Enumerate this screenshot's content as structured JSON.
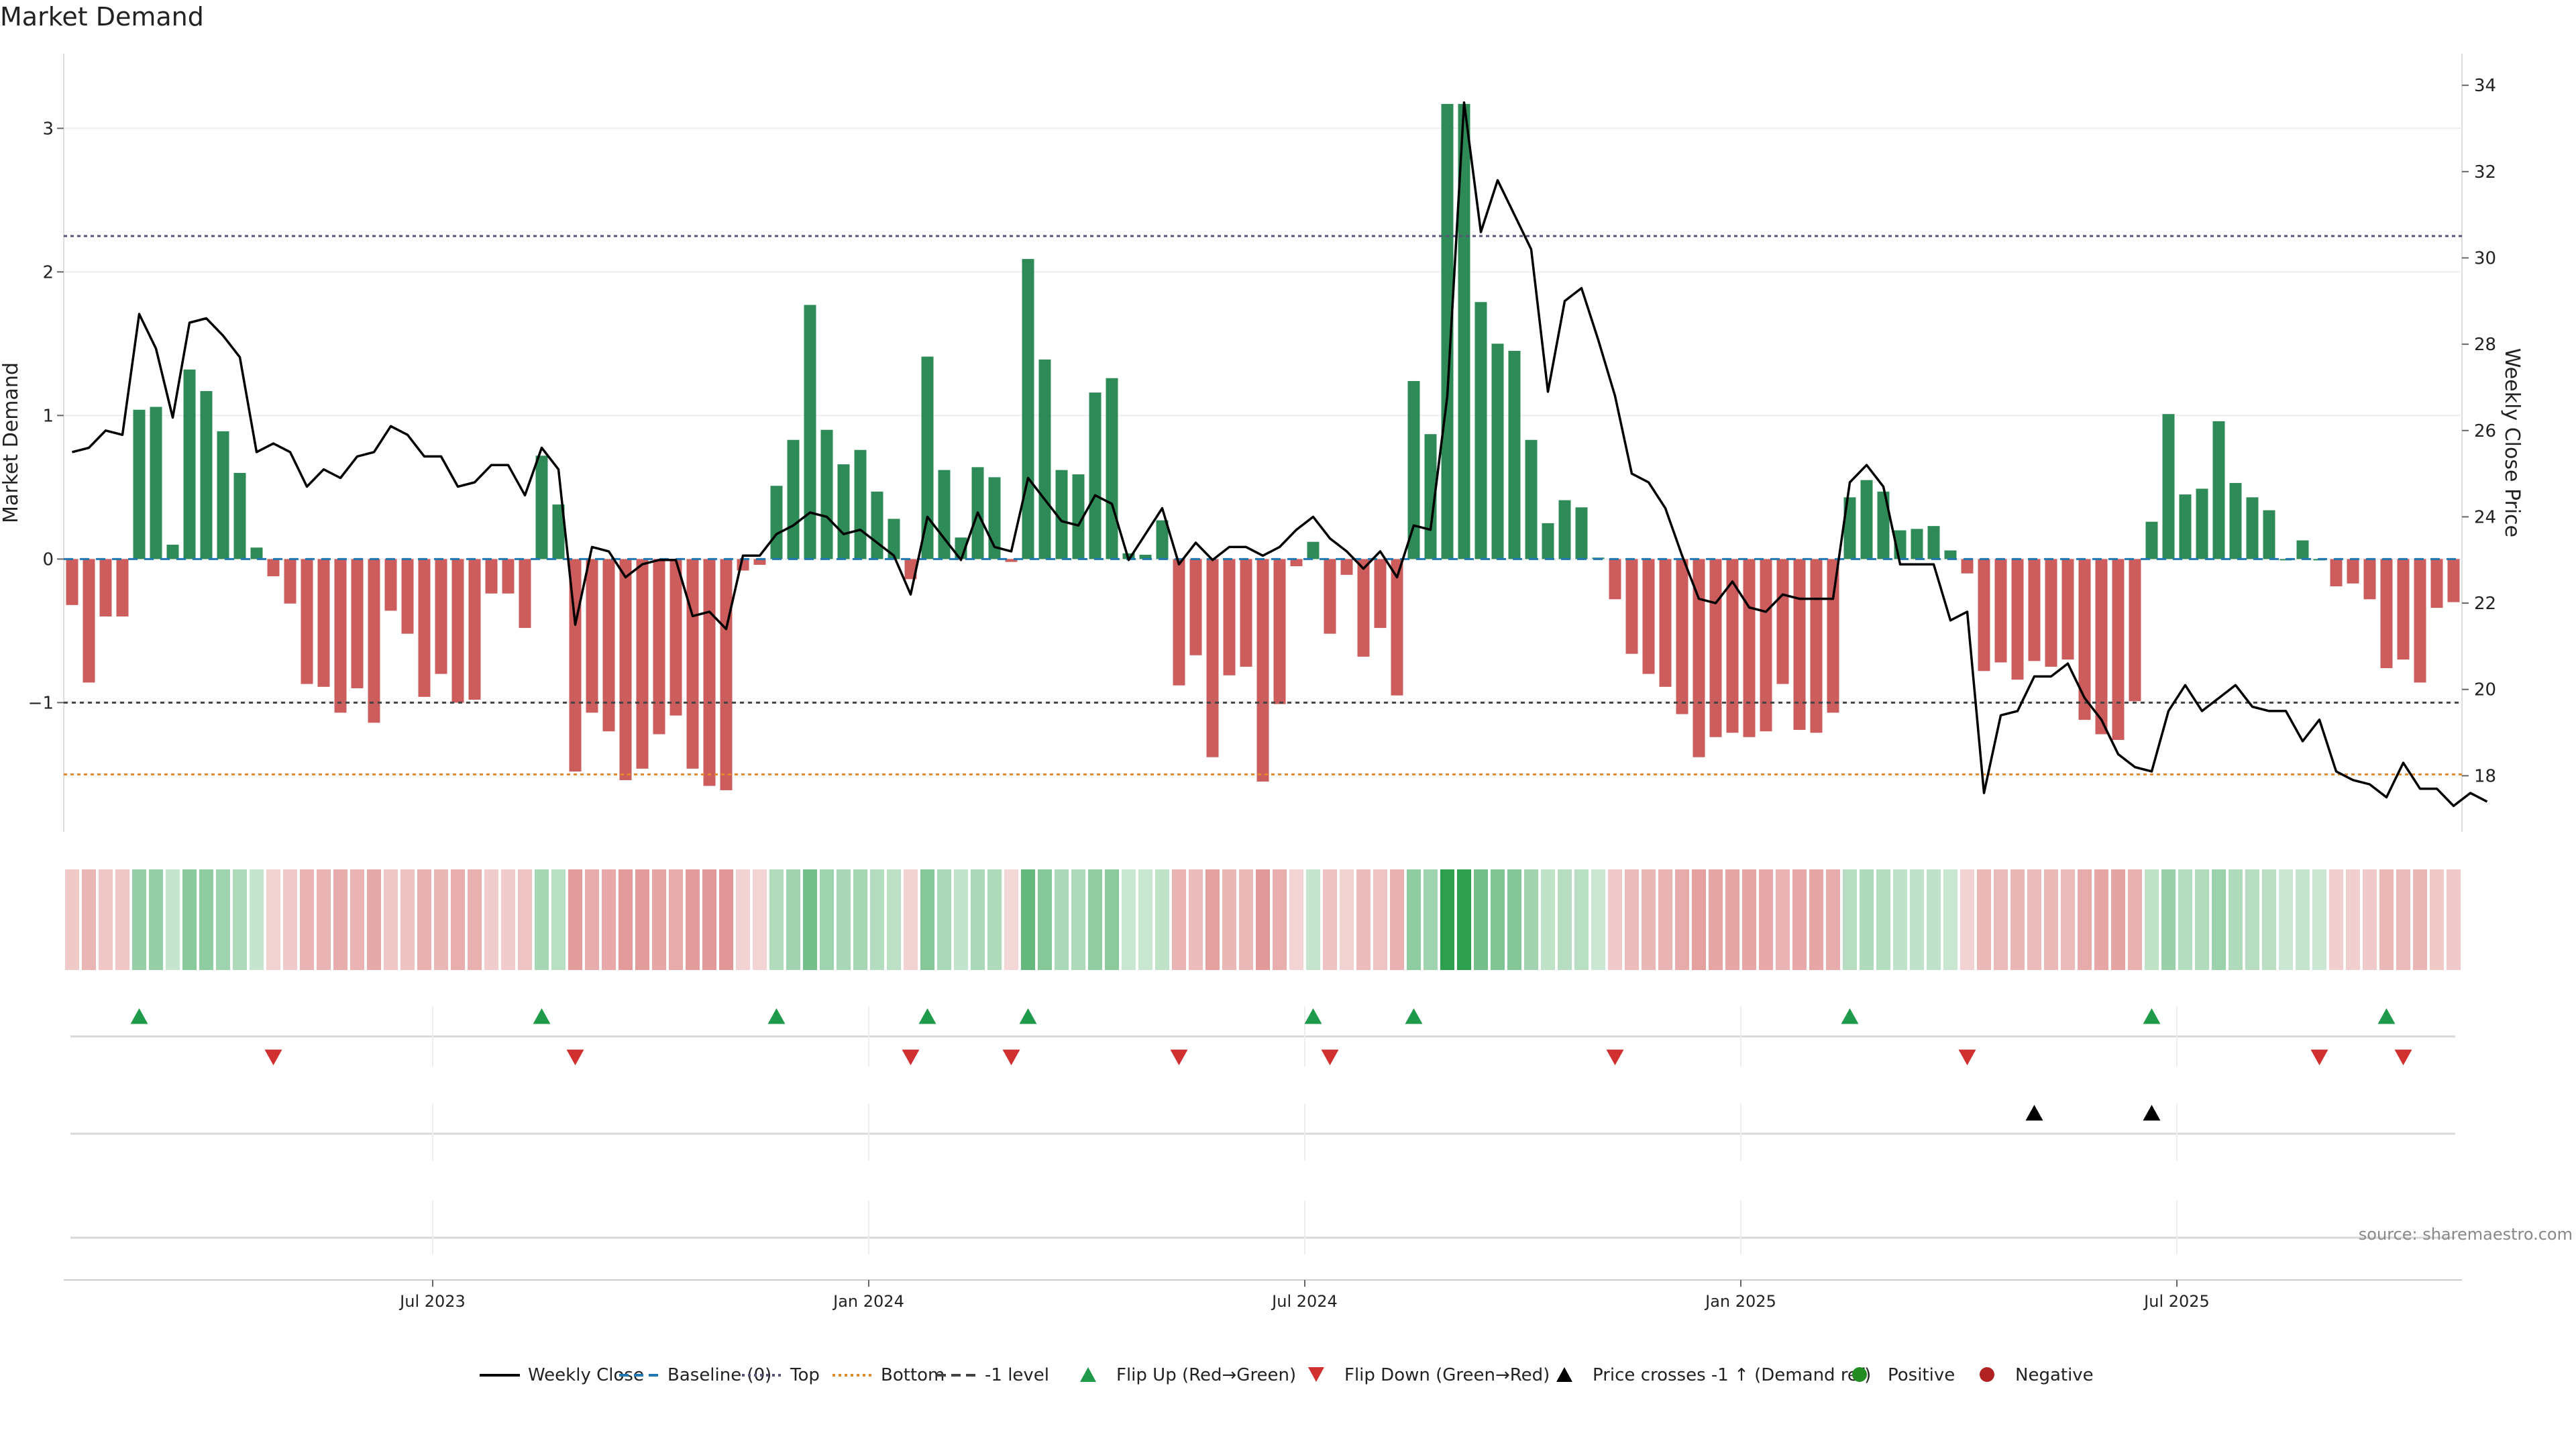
{
  "chart_data": {
    "type": "bar",
    "title": "Market Demand",
    "ylabel": "Market Demand",
    "y2label": "Weekly Close Price",
    "source": "source: sharemaestro.com",
    "ylim": [
      -1.9,
      3.45
    ],
    "y2lim": [
      16.7,
      34.5
    ],
    "yticks": [
      "3",
      "2",
      "1",
      "0",
      "−1"
    ],
    "ytick_values": [
      3,
      2,
      1,
      0,
      -1
    ],
    "y2ticks": [
      "34",
      "32",
      "30",
      "28",
      "26",
      "24",
      "22",
      "20",
      "18"
    ],
    "y2tick_values": [
      34,
      32,
      30,
      28,
      26,
      24,
      22,
      20,
      18
    ],
    "xticks": [
      "Jul 2023",
      "Jan 2024",
      "Jul 2024",
      "Jan 2025",
      "Jul 2025"
    ],
    "xtick_weeks": [
      22,
      48,
      74,
      100,
      126
    ],
    "levels": {
      "top": 2.25,
      "minus_one": -1.0,
      "bottom": -1.5
    },
    "demand": [
      -0.32,
      -0.86,
      -0.4,
      -0.4,
      1.04,
      1.06,
      0.1,
      1.32,
      1.17,
      0.89,
      0.6,
      0.08,
      -0.12,
      -0.31,
      -0.87,
      -0.89,
      -1.07,
      -0.9,
      -1.14,
      -0.36,
      -0.52,
      -0.96,
      -0.8,
      -1.0,
      -0.98,
      -0.24,
      -0.24,
      -0.48,
      0.72,
      0.38,
      -1.48,
      -1.07,
      -1.2,
      -1.54,
      -1.46,
      -1.22,
      -1.09,
      -1.46,
      -1.58,
      -1.61,
      -0.08,
      -0.04,
      0.51,
      0.83,
      1.77,
      0.9,
      0.66,
      0.76,
      0.47,
      0.28,
      -0.14,
      1.41,
      0.62,
      0.15,
      0.64,
      0.57,
      -0.02,
      2.09,
      1.39,
      0.62,
      0.59,
      1.16,
      1.26,
      0.04,
      0.03,
      0.27,
      -0.88,
      -0.67,
      -1.38,
      -0.81,
      -0.75,
      -1.55,
      -1.01,
      -0.05,
      0.12,
      -0.52,
      -0.11,
      -0.68,
      -0.48,
      -0.95,
      1.24,
      0.87,
      3.17,
      3.17,
      1.79,
      1.5,
      1.45,
      0.83,
      0.25,
      0.41,
      0.36,
      0.01,
      -0.28,
      -0.66,
      -0.8,
      -0.89,
      -1.08,
      -1.38,
      -1.24,
      -1.21,
      -1.24,
      -1.2,
      -0.87,
      -1.19,
      -1.21,
      -1.07,
      0.43,
      0.55,
      0.47,
      0.2,
      0.21,
      0.23,
      0.06,
      -0.1,
      -0.78,
      -0.72,
      -0.84,
      -0.71,
      -0.75,
      -0.7,
      -1.12,
      -1.22,
      -1.26,
      -0.99,
      0.26,
      1.01,
      0.45,
      0.49,
      0.96,
      0.53,
      0.43,
      0.34,
      0.0,
      0.13,
      0.0,
      -0.19,
      -0.17,
      -0.28,
      -0.76,
      -0.7,
      -0.86,
      -0.34,
      -0.3
    ],
    "close": [
      25.5,
      25.6,
      26.0,
      25.9,
      28.7,
      27.9,
      26.3,
      28.5,
      28.6,
      28.2,
      27.7,
      25.5,
      25.7,
      25.5,
      24.7,
      25.1,
      24.9,
      25.4,
      25.5,
      26.1,
      25.9,
      25.4,
      25.4,
      24.7,
      24.8,
      25.2,
      25.2,
      24.5,
      25.6,
      25.1,
      21.5,
      23.3,
      23.2,
      22.6,
      22.9,
      23.0,
      23.0,
      21.7,
      21.8,
      21.4,
      23.1,
      23.1,
      23.6,
      23.8,
      24.1,
      24.0,
      23.6,
      23.7,
      23.4,
      23.1,
      22.2,
      24.0,
      23.5,
      23.0,
      24.1,
      23.3,
      23.2,
      24.9,
      24.4,
      23.9,
      23.8,
      24.5,
      24.3,
      23.0,
      23.6,
      24.2,
      22.9,
      23.4,
      23.0,
      23.3,
      23.3,
      23.1,
      23.3,
      23.7,
      24.0,
      23.5,
      23.2,
      22.8,
      23.2,
      22.6,
      23.8,
      23.7,
      26.8,
      33.6,
      30.6,
      31.8,
      31.0,
      30.2,
      26.9,
      29.0,
      29.3,
      28.1,
      26.8,
      25.0,
      24.8,
      24.2,
      23.1,
      22.1,
      22.0,
      22.5,
      21.9,
      21.8,
      22.2,
      22.1,
      22.1,
      22.1,
      24.8,
      25.2,
      24.7,
      22.9,
      22.9,
      22.9,
      21.6,
      21.8,
      17.6,
      19.4,
      19.5,
      20.3,
      20.3,
      20.6,
      19.8,
      19.3,
      18.5,
      18.2,
      18.1,
      19.5,
      20.1,
      19.5,
      19.8,
      20.1,
      19.6,
      19.5,
      19.5,
      18.8,
      19.3,
      18.1,
      17.9,
      17.8,
      17.5,
      18.3,
      17.7,
      17.7,
      17.3,
      17.6,
      17.4
    ],
    "flip_up_weeks": [
      4,
      28,
      42,
      51,
      57,
      74,
      80,
      106,
      124,
      138
    ],
    "flip_down_weeks": [
      12,
      30,
      50,
      56,
      66,
      75,
      92,
      113,
      134,
      139
    ],
    "price_cross_weeks": [
      117,
      124
    ],
    "legend": [
      {
        "label": "Weekly Close",
        "type": "line",
        "color": "#000000",
        "dash": "solid"
      },
      {
        "label": "Baseline (0)",
        "type": "line",
        "color": "#1f77b4",
        "dash": "dashed"
      },
      {
        "label": "Top",
        "type": "line",
        "color": "#555577",
        "dash": "dotted"
      },
      {
        "label": "Bottom",
        "type": "line",
        "color": "#e08a2c",
        "dash": "dotted"
      },
      {
        "label": "-1 level",
        "type": "line",
        "color": "#444444",
        "dash": "dashed"
      },
      {
        "label": "Flip Up (Red→Green)",
        "type": "triangle-up",
        "color": "#1f9a4a"
      },
      {
        "label": "Flip Down (Green→Red)",
        "type": "triangle-down",
        "color": "#d03030"
      },
      {
        "label": "Price crosses -1 ↑ (Demand ref)",
        "type": "triangle-up",
        "color": "#000000"
      },
      {
        "label": "Positive",
        "type": "dot",
        "color": "#228b22"
      },
      {
        "label": "Negative",
        "type": "dot",
        "color": "#b22222"
      }
    ],
    "colors": {
      "positive_bar": "#2e8b57",
      "negative_bar": "#cd5c5c",
      "close_line": "#000000",
      "flip_up": "#1f9a4a",
      "flip_down": "#d03030",
      "price_cross": "#000000"
    }
  }
}
